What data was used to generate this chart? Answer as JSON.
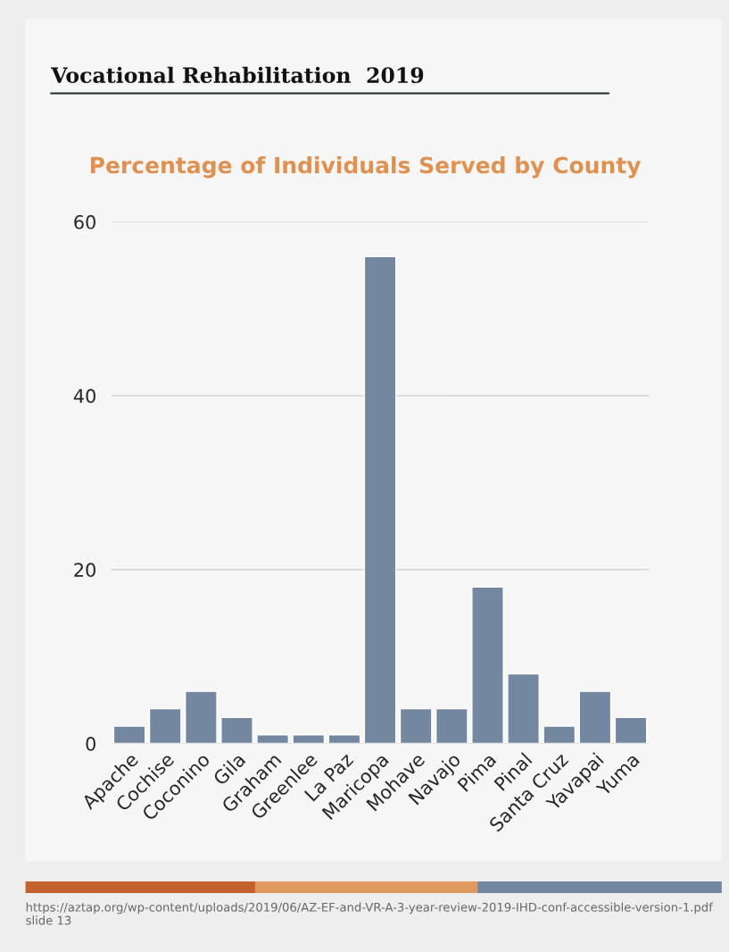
{
  "chart_data": {
    "type": "bar",
    "title": "Vocational Rehabilitation  2019",
    "subtitle": "Percentage of Individuals Served by County",
    "categories": [
      "Apache",
      "Cochise",
      "Coconino",
      "Gila",
      "Graham",
      "Greenlee",
      "La Paz",
      "Maricopa",
      "Mohave",
      "Navajo",
      "Pima",
      "Pinal",
      "Santa Cruz",
      "Yavapai",
      "Yuma"
    ],
    "values": [
      2,
      4,
      6,
      3,
      1,
      1,
      1,
      56,
      4,
      4,
      18,
      8,
      2,
      6,
      3
    ],
    "color": "#7487a1",
    "ylim": [
      0,
      60
    ],
    "yticks": [
      0,
      20,
      40,
      60
    ],
    "grid": "y",
    "annotations": [
      "https://aztap.org/wp-content/uploads/2019/06/AZ-EF-and-VR-A-3-year-review-2019-IHD-conf-accessible-version-1.pdf slide 13"
    ]
  }
}
